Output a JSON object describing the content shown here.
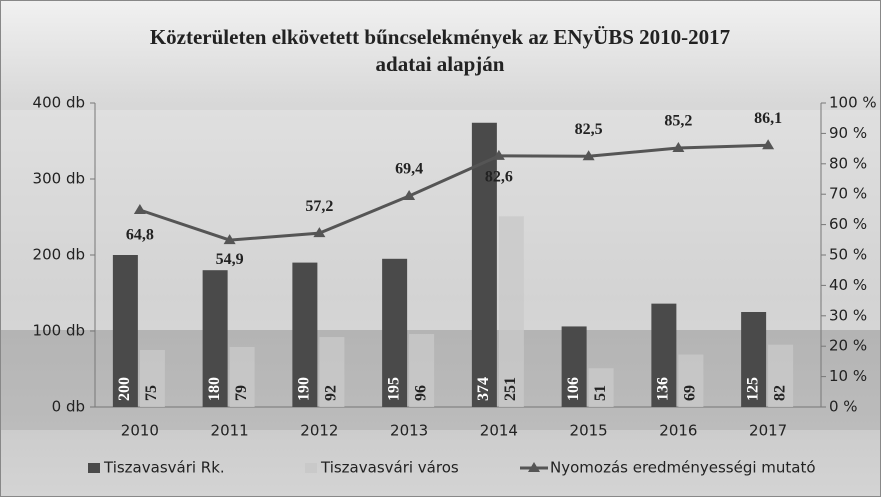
{
  "chart_data": {
    "type": "bar-line",
    "title": [
      "Közterületen elkövetett  bűncselekmények az ENyÜBS 2010-2017",
      "adatai alapján"
    ],
    "categories": [
      "2010",
      "2011",
      "2012",
      "2013",
      "2014",
      "2015",
      "2016",
      "2017"
    ],
    "series": [
      {
        "name": "Tiszavasvári Rk.",
        "color": "#4a4a4a",
        "type": "bar",
        "values": [
          200,
          180,
          190,
          195,
          374,
          106,
          136,
          125
        ]
      },
      {
        "name": "Tiszavasvári város",
        "color": "#c9c9c9",
        "type": "bar",
        "values": [
          75,
          79,
          92,
          96,
          251,
          51,
          69,
          82
        ]
      },
      {
        "name": "Nyomozás eredményességi mutató",
        "color": "#555555",
        "type": "line",
        "axis": "y2",
        "values": [
          64.8,
          54.9,
          57.2,
          69.4,
          82.6,
          82.5,
          85.2,
          86.1
        ],
        "value_labels": [
          "64,8",
          "54,9",
          "57,2",
          "69,4",
          "82,6",
          "82,5",
          "85,2",
          "86,1"
        ]
      }
    ],
    "ylim": [
      0,
      400
    ],
    "yticks": [
      {
        "value": 0,
        "label": "0 db"
      },
      {
        "value": 100,
        "label": "100 db"
      },
      {
        "value": 200,
        "label": "200 db"
      },
      {
        "value": 300,
        "label": "300 db"
      },
      {
        "value": 400,
        "label": "400 db"
      }
    ],
    "y2lim": [
      0,
      100
    ],
    "y2ticks": [
      {
        "value": 0,
        "label": "0 %"
      },
      {
        "value": 10,
        "label": "10 %"
      },
      {
        "value": 20,
        "label": "20 %"
      },
      {
        "value": 30,
        "label": "30 %"
      },
      {
        "value": 40,
        "label": "40 %"
      },
      {
        "value": 50,
        "label": "50 %"
      },
      {
        "value": 60,
        "label": "60 %"
      },
      {
        "value": 70,
        "label": "70 %"
      },
      {
        "value": 80,
        "label": "80 %"
      },
      {
        "value": 90,
        "label": "90 %"
      },
      {
        "value": 100,
        "label": "100 %"
      }
    ],
    "legend": "bottom"
  }
}
